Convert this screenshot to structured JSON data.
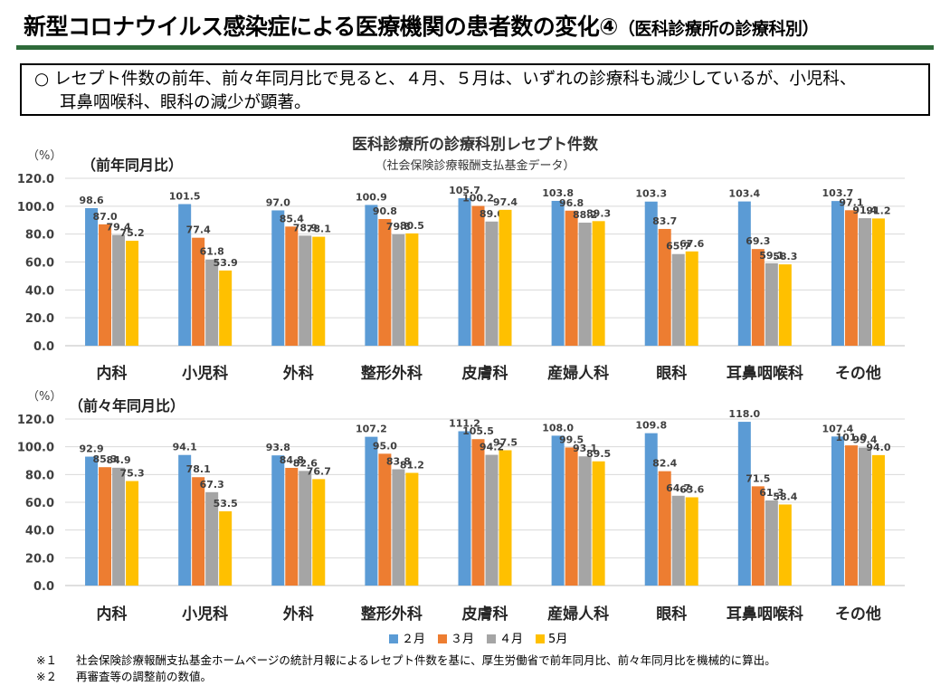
{
  "header": {
    "title": "新型コロナウイルス感染症による医療機関の患者数の変化④",
    "title_sub": "（医科診療所の診療科別）"
  },
  "note": {
    "line1": "○ レセプト件数の前年、前々年同月比で見ると、４月、５月は、いずれの診療科も減少しているが、小児科、",
    "line2": "耳鼻咽喉科、眼科の減少が顕著。"
  },
  "chart_data": [
    {
      "type": "bar",
      "title": "医科診療所の診療科別レセプト件数",
      "subtitle": "（社会保険診療報酬支払基金データ）",
      "panel_label": "（前年同月比）",
      "ylabel": "（%）",
      "ylim": [
        0,
        120
      ],
      "yticks": [
        "0.0",
        "20.0",
        "40.0",
        "60.0",
        "80.0",
        "100.0",
        "120.0"
      ],
      "grid": true,
      "categories": [
        "内科",
        "小児科",
        "外科",
        "整形外科",
        "皮膚科",
        "産婦人科",
        "眼科",
        "耳鼻咽喉科",
        "その他"
      ],
      "series": [
        {
          "name": "２月",
          "color": "#5b9bd5",
          "values": [
            98.6,
            101.5,
            97.0,
            100.9,
            105.7,
            103.8,
            103.3,
            103.4,
            103.7
          ]
        },
        {
          "name": "３月",
          "color": "#ed7d31",
          "values": [
            87.0,
            77.4,
            85.4,
            90.8,
            100.2,
            96.8,
            83.7,
            69.3,
            97.1
          ]
        },
        {
          "name": "４月",
          "color": "#a5a5a5",
          "values": [
            79.4,
            61.8,
            78.9,
            79.8,
            89.0,
            88.2,
            65.7,
            59.1,
            91.4
          ]
        },
        {
          "name": "5月",
          "color": "#ffc000",
          "values": [
            75.2,
            53.9,
            78.1,
            80.5,
            97.4,
            89.3,
            67.6,
            58.3,
            91.2
          ]
        }
      ]
    },
    {
      "type": "bar",
      "panel_label": "（前々年同月比）",
      "ylabel": "（%）",
      "ylim": [
        0,
        120
      ],
      "yticks": [
        "0.0",
        "20.0",
        "40.0",
        "60.0",
        "80.0",
        "100.0",
        "120.0"
      ],
      "grid": true,
      "categories": [
        "内科",
        "小児科",
        "外科",
        "整形外科",
        "皮膚科",
        "産婦人科",
        "眼科",
        "耳鼻咽喉科",
        "その他"
      ],
      "series": [
        {
          "name": "２月",
          "color": "#5b9bd5",
          "values": [
            92.9,
            94.1,
            93.8,
            107.2,
            111.2,
            108.0,
            109.8,
            118.0,
            107.4
          ]
        },
        {
          "name": "３月",
          "color": "#ed7d31",
          "values": [
            85.3,
            78.1,
            84.8,
            95.0,
            105.5,
            99.5,
            82.4,
            71.5,
            101.0
          ]
        },
        {
          "name": "４月",
          "color": "#a5a5a5",
          "values": [
            84.9,
            67.3,
            82.6,
            83.8,
            94.2,
            93.1,
            64.7,
            61.3,
            99.4
          ]
        },
        {
          "name": "5月",
          "color": "#ffc000",
          "values": [
            75.3,
            53.5,
            76.7,
            81.2,
            97.5,
            89.5,
            63.6,
            58.4,
            94.0
          ]
        }
      ]
    }
  ],
  "legend": [
    {
      "name": "２月",
      "color": "#5b9bd5"
    },
    {
      "name": "３月",
      "color": "#ed7d31"
    },
    {
      "name": "４月",
      "color": "#a5a5a5"
    },
    {
      "name": "5月",
      "color": "#ffc000"
    }
  ],
  "footnotes": [
    {
      "mark": "※１",
      "text": "社会保険診療報酬支払基金ホームページの統計月報によるレセプト件数を基に、厚生労働省で前年同月比、前々年同月比を機械的に算出。"
    },
    {
      "mark": "※２",
      "text": "再審査等の調整前の数値。"
    }
  ]
}
